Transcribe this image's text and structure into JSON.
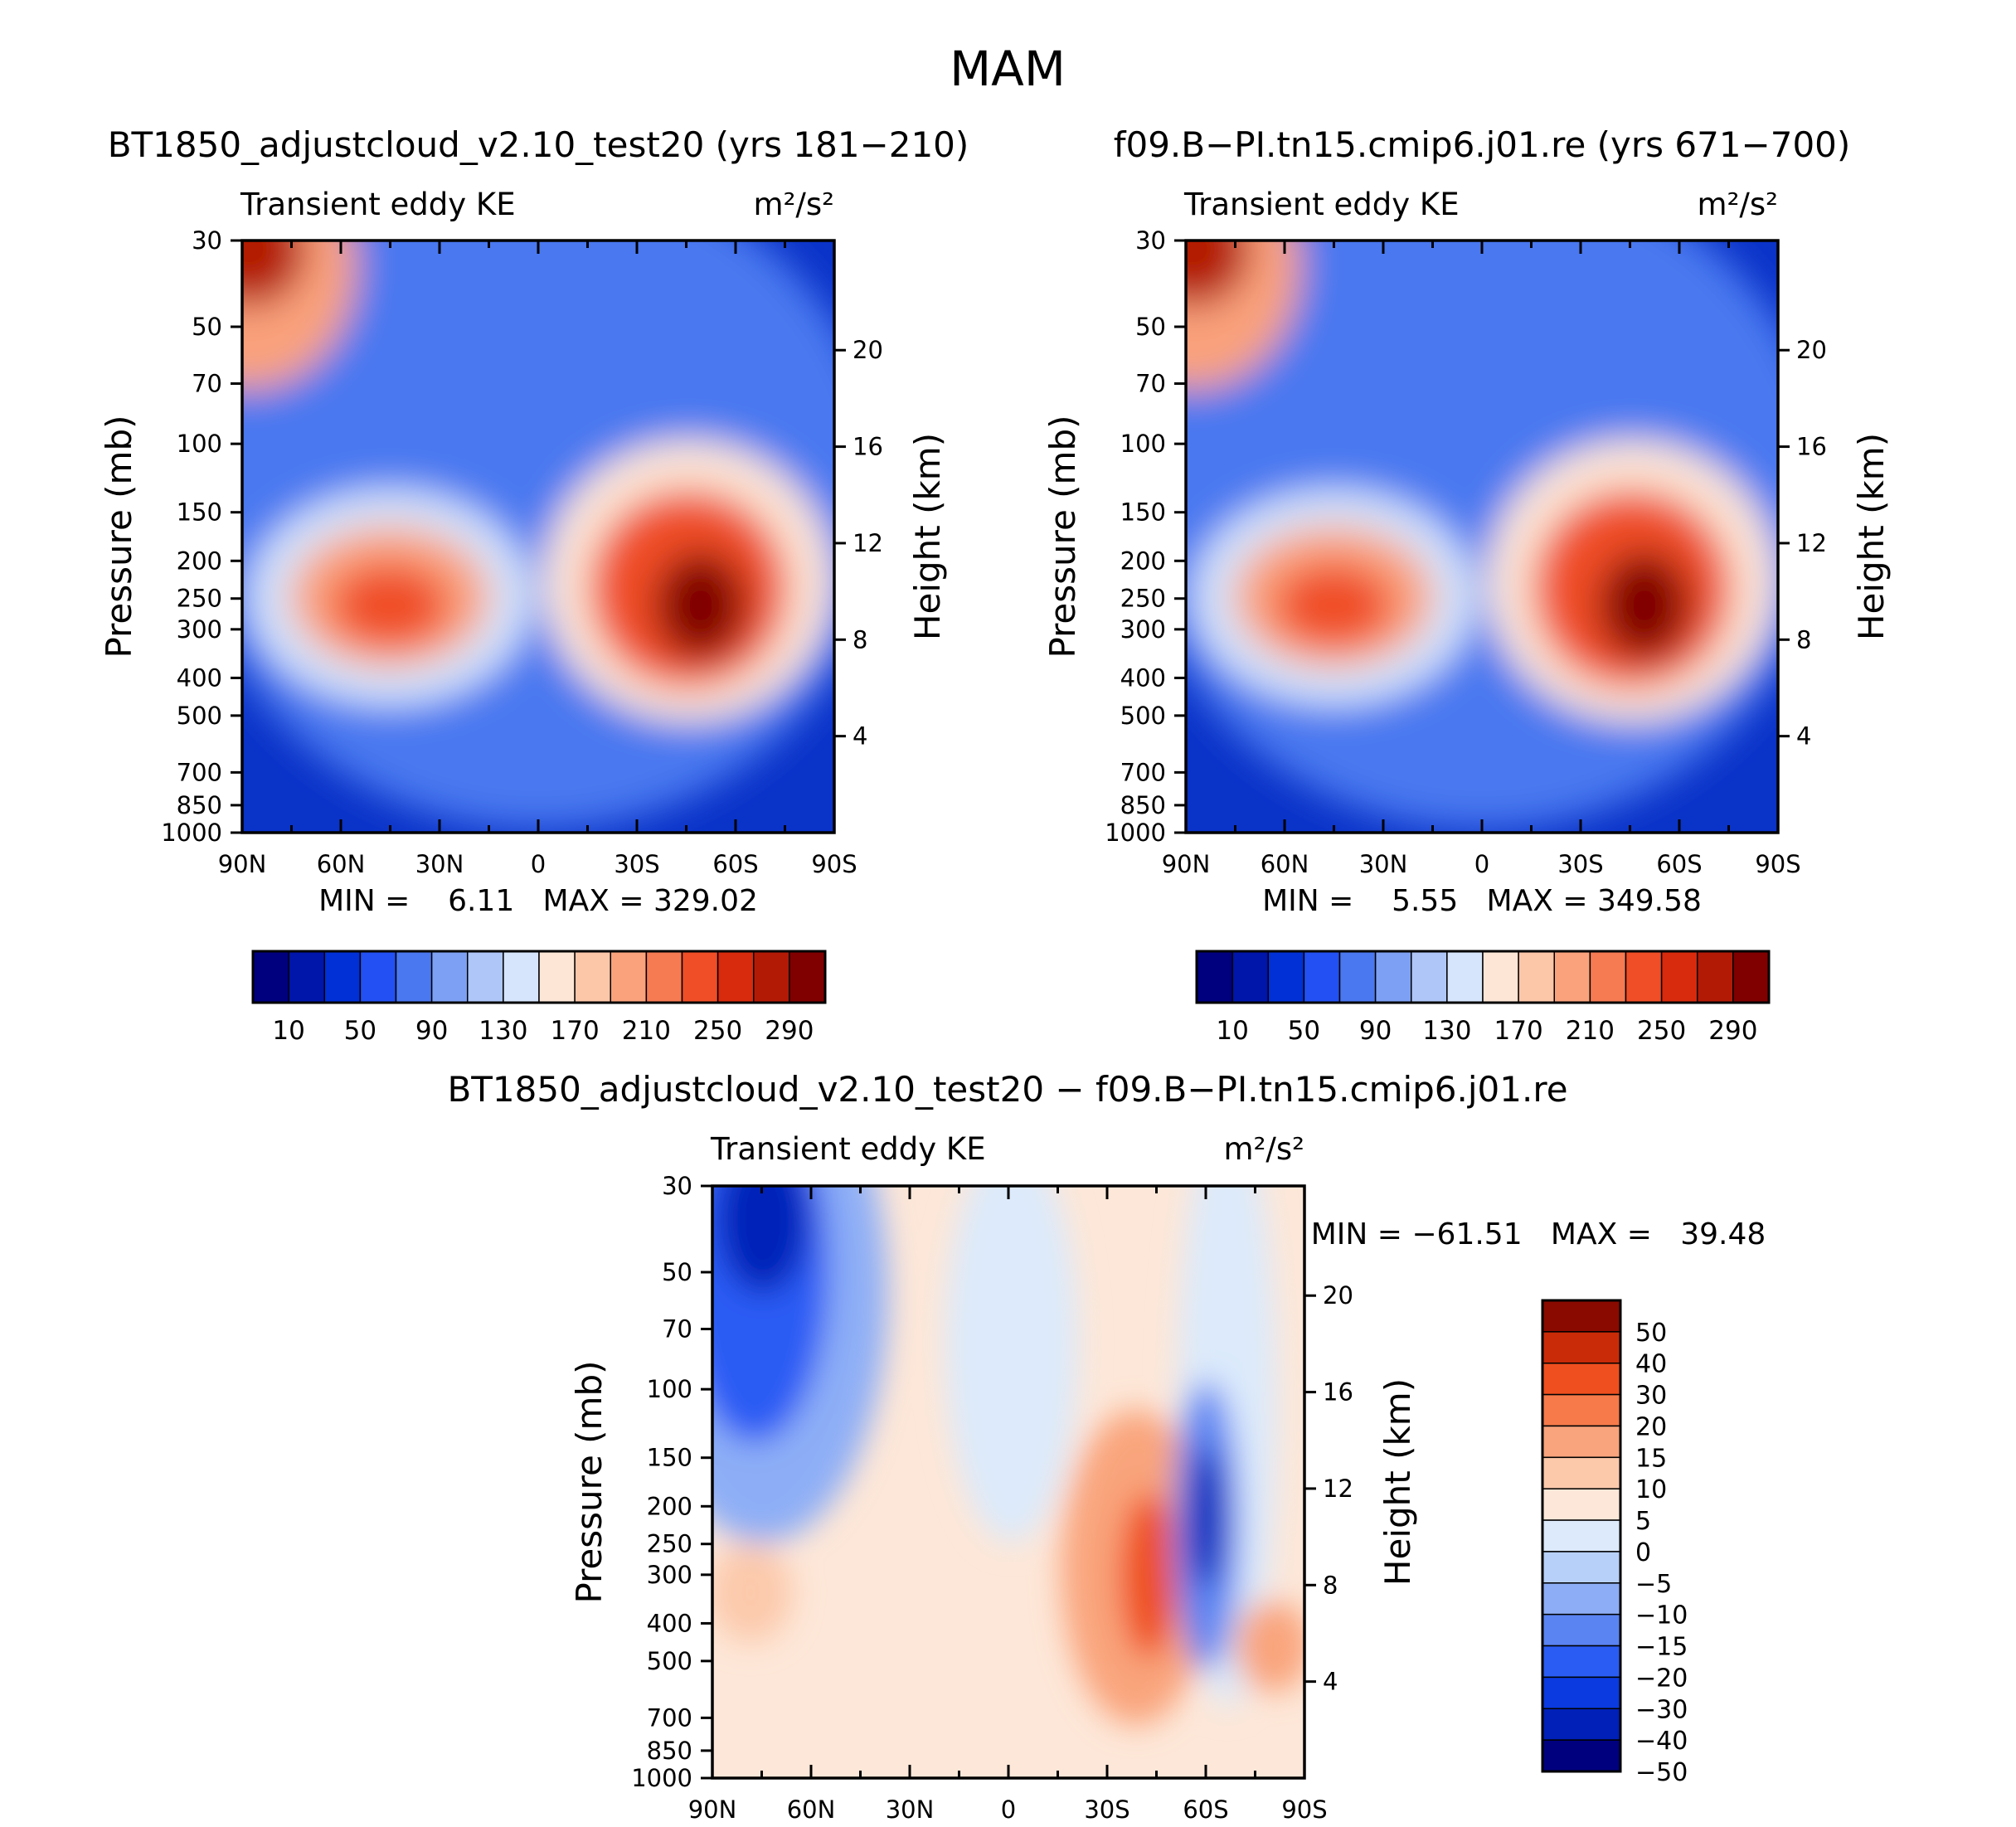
{
  "figure_title": "MAM",
  "chart_data": [
    {
      "type": "heatmap",
      "id": "panel1",
      "case_title": "BT1850_adjustcloud_v2.10_test20 (yrs 181−210)",
      "left_label": "Transient eddy KE",
      "units": "m²/s²",
      "ylabel": "Pressure (mb)",
      "ylabel_right": "Height (km)",
      "x_ticks": [
        "90N",
        "60N",
        "30N",
        "0",
        "30S",
        "60S",
        "90S"
      ],
      "y_ticks": [
        "30",
        "50",
        "70",
        "100",
        "150",
        "200",
        "250",
        "300",
        "400",
        "500",
        "700",
        "850",
        "1000"
      ],
      "y2_ticks": [
        "20",
        "16",
        "12",
        "8",
        "4"
      ],
      "min_max": "MIN =    6.11   MAX = 329.02",
      "min": 6.11,
      "max": 329.02,
      "colorbar_labels": [
        "10",
        "50",
        "90",
        "130",
        "170",
        "210",
        "250",
        "290"
      ],
      "levels": [
        10,
        30,
        50,
        70,
        90,
        110,
        130,
        150,
        170,
        190,
        210,
        230,
        250,
        270,
        290
      ]
    },
    {
      "type": "heatmap",
      "id": "panel2",
      "case_title": "f09.B−PI.tn15.cmip6.j01.re (yrs 671−700)",
      "left_label": "Transient eddy KE",
      "units": "m²/s²",
      "ylabel": "Pressure (mb)",
      "ylabel_right": "Height (km)",
      "x_ticks": [
        "90N",
        "60N",
        "30N",
        "0",
        "30S",
        "60S",
        "90S"
      ],
      "y_ticks": [
        "30",
        "50",
        "70",
        "100",
        "150",
        "200",
        "250",
        "300",
        "400",
        "500",
        "700",
        "850",
        "1000"
      ],
      "y2_ticks": [
        "20",
        "16",
        "12",
        "8",
        "4"
      ],
      "min_max": "MIN =    5.55   MAX = 349.58",
      "min": 5.55,
      "max": 349.58,
      "colorbar_labels": [
        "10",
        "50",
        "90",
        "130",
        "170",
        "210",
        "250",
        "290"
      ],
      "levels": [
        10,
        30,
        50,
        70,
        90,
        110,
        130,
        150,
        170,
        190,
        210,
        230,
        250,
        270,
        290
      ]
    },
    {
      "type": "heatmap",
      "id": "diff",
      "case_title": "BT1850_adjustcloud_v2.10_test20 − f09.B−PI.tn15.cmip6.j01.re",
      "left_label": "Transient eddy KE",
      "units": "m²/s²",
      "ylabel": "Pressure (mb)",
      "ylabel_right": "Height (km)",
      "x_ticks": [
        "90N",
        "60N",
        "30N",
        "0",
        "30S",
        "60S",
        "90S"
      ],
      "y_ticks": [
        "30",
        "50",
        "70",
        "100",
        "150",
        "200",
        "250",
        "300",
        "400",
        "500",
        "700",
        "850",
        "1000"
      ],
      "y2_ticks": [
        "20",
        "16",
        "12",
        "8",
        "4"
      ],
      "min_max": "MIN = −61.51   MAX =   39.48",
      "min": -61.51,
      "max": 39.48,
      "colorbar_labels": [
        "50",
        "40",
        "30",
        "20",
        "15",
        "10",
        "5",
        "0",
        "−5",
        "−10",
        "−15",
        "−20",
        "−30",
        "−40",
        "−50"
      ],
      "levels": [
        -50,
        -40,
        -30,
        -20,
        -15,
        -10,
        -5,
        0,
        5,
        10,
        15,
        20,
        30,
        40,
        50
      ]
    }
  ],
  "colors": {
    "full": [
      "#00007f",
      "#0015aa",
      "#0030d6",
      "#2250f2",
      "#4a78f0",
      "#7da0f4",
      "#aec6f8",
      "#d6e5fb",
      "#fde6d6",
      "#fcc6a8",
      "#faa27c",
      "#f67a52",
      "#f04e26",
      "#d82a0c",
      "#b31a06",
      "#800000"
    ],
    "diff": [
      "#00007f",
      "#0020b8",
      "#0a3ae0",
      "#2a5cf4",
      "#5a84f2",
      "#8daef6",
      "#b7d0f9",
      "#dceafb",
      "#fde7d8",
      "#fcc9ab",
      "#f9a47c",
      "#f67a4a",
      "#ef4f1e",
      "#c92b08",
      "#8a0a00"
    ]
  }
}
